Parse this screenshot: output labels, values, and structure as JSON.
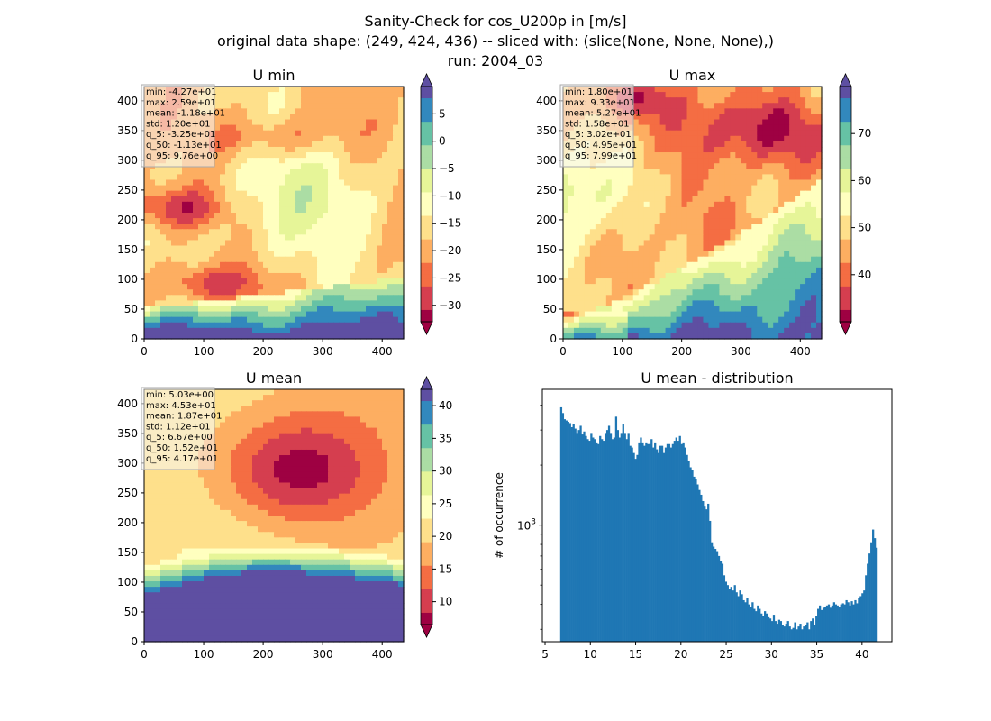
{
  "figure": {
    "title_lines": [
      "Sanity-Check for cos_U200p in [m/s]",
      "original data shape: (249, 424, 436) -- sliced with: (slice(None, None, None),)",
      "run: 2004_03"
    ]
  },
  "chart_data": [
    {
      "type": "heatmap",
      "title": "U min",
      "xlim": [
        0,
        436
      ],
      "ylim": [
        0,
        424
      ],
      "xticks": [
        "0",
        "100",
        "200",
        "300",
        "400"
      ],
      "yticks": [
        "0",
        "50",
        "100",
        "150",
        "200",
        "250",
        "300",
        "350",
        "400"
      ],
      "colormap": "Spectral",
      "colorbar": {
        "range": [
          -33,
          10
        ],
        "ticks": [
          "5",
          "0",
          "−5",
          "−10",
          "−15",
          "−20",
          "−25",
          "−30"
        ],
        "tick_values": [
          5,
          0,
          -5,
          -10,
          -15,
          -20,
          -25,
          -30
        ],
        "extend": "both"
      },
      "stats_lines": [
        "min: -4.27e+01",
        "max: 2.59e+01",
        "mean: -1.18e+01",
        "std: 1.20e+01",
        "q_5: -3.25e+01",
        "q_50: -1.13e+01",
        "q_95: 9.76e+00"
      ]
    },
    {
      "type": "heatmap",
      "title": "U max",
      "xlim": [
        0,
        436
      ],
      "ylim": [
        0,
        424
      ],
      "xticks": [
        "0",
        "100",
        "200",
        "300",
        "400"
      ],
      "yticks": [
        "0",
        "50",
        "100",
        "150",
        "200",
        "250",
        "300",
        "350",
        "400"
      ],
      "colormap": "Spectral",
      "colorbar": {
        "range": [
          30,
          80
        ],
        "ticks": [
          "70",
          "60",
          "50",
          "40"
        ],
        "tick_values": [
          70,
          60,
          50,
          40
        ],
        "extend": "both"
      },
      "stats_lines": [
        "min: 1.80e+01",
        "max: 9.33e+01",
        "mean: 5.27e+01",
        "std: 1.58e+01",
        "q_5: 3.02e+01",
        "q_50: 4.95e+01",
        "q_95: 7.99e+01"
      ]
    },
    {
      "type": "heatmap",
      "title": "U mean",
      "xlim": [
        0,
        436
      ],
      "ylim": [
        0,
        424
      ],
      "xticks": [
        "0",
        "100",
        "200",
        "300",
        "400"
      ],
      "yticks": [
        "0",
        "50",
        "100",
        "150",
        "200",
        "250",
        "300",
        "350",
        "400"
      ],
      "colormap": "Spectral",
      "colorbar": {
        "range": [
          6.5,
          42.5
        ],
        "ticks": [
          "40",
          "35",
          "30",
          "25",
          "20",
          "15",
          "10"
        ],
        "tick_values": [
          40,
          35,
          30,
          25,
          20,
          15,
          10
        ],
        "extend": "both"
      },
      "stats_lines": [
        "min: 5.03e+00",
        "max: 4.53e+01",
        "mean: 1.87e+01",
        "std: 1.12e+01",
        "q_5: 6.67e+00",
        "q_50: 1.52e+01",
        "q_95: 4.17e+01"
      ]
    },
    {
      "type": "bar",
      "title": "U mean - distribution",
      "xlabel": "",
      "ylabel": "# of occurrence",
      "yscale": "log",
      "xlim": [
        4.7,
        43.3
      ],
      "ylim": [
        260,
        4800
      ],
      "xticks": [
        "5",
        "10",
        "15",
        "20",
        "25",
        "30",
        "35",
        "40"
      ],
      "ytick_label": "10",
      "ytick_label_exp": "3",
      "bins": {
        "start": 6.67,
        "end": 41.7,
        "count": 175
      },
      "values": [
        3900,
        3650,
        3400,
        3350,
        3300,
        3250,
        3100,
        3200,
        3050,
        2900,
        3000,
        3150,
        2850,
        2950,
        2800,
        2700,
        2650,
        2900,
        2750,
        2700,
        2600,
        2550,
        2800,
        2700,
        2650,
        2900,
        3000,
        3150,
        2900,
        2700,
        2750,
        3500,
        3000,
        2750,
        2900,
        3200,
        2900,
        2700,
        2900,
        2500,
        2450,
        2300,
        2150,
        2250,
        2600,
        2750,
        2600,
        2500,
        2600,
        2550,
        2550,
        2700,
        2450,
        2600,
        2400,
        2300,
        2500,
        2500,
        2300,
        2450,
        2550,
        2550,
        2450,
        2550,
        2650,
        2750,
        2650,
        2800,
        2550,
        2600,
        2450,
        2250,
        2100,
        1950,
        1900,
        1750,
        1700,
        1600,
        1500,
        1420,
        1320,
        1250,
        1200,
        1280,
        1050,
        820,
        780,
        760,
        740,
        700,
        660,
        640,
        560,
        520,
        500,
        480,
        490,
        470,
        500,
        460,
        440,
        470,
        450,
        420,
        410,
        430,
        400,
        390,
        410,
        380,
        370,
        395,
        380,
        360,
        350,
        370,
        360,
        345,
        340,
        330,
        355,
        330,
        320,
        335,
        330,
        315,
        310,
        320,
        330,
        310,
        300,
        305,
        325,
        300,
        310,
        320,
        300,
        310,
        315,
        325,
        300,
        330,
        340,
        315,
        350,
        380,
        395,
        375,
        385,
        390,
        395,
        400,
        385,
        395,
        410,
        400,
        395,
        390,
        400,
        405,
        400,
        420,
        410,
        395,
        415,
        400,
        420,
        405,
        430,
        440,
        455,
        470,
        560,
        640,
        720,
        820,
        950,
        860,
        770
      ]
    }
  ]
}
